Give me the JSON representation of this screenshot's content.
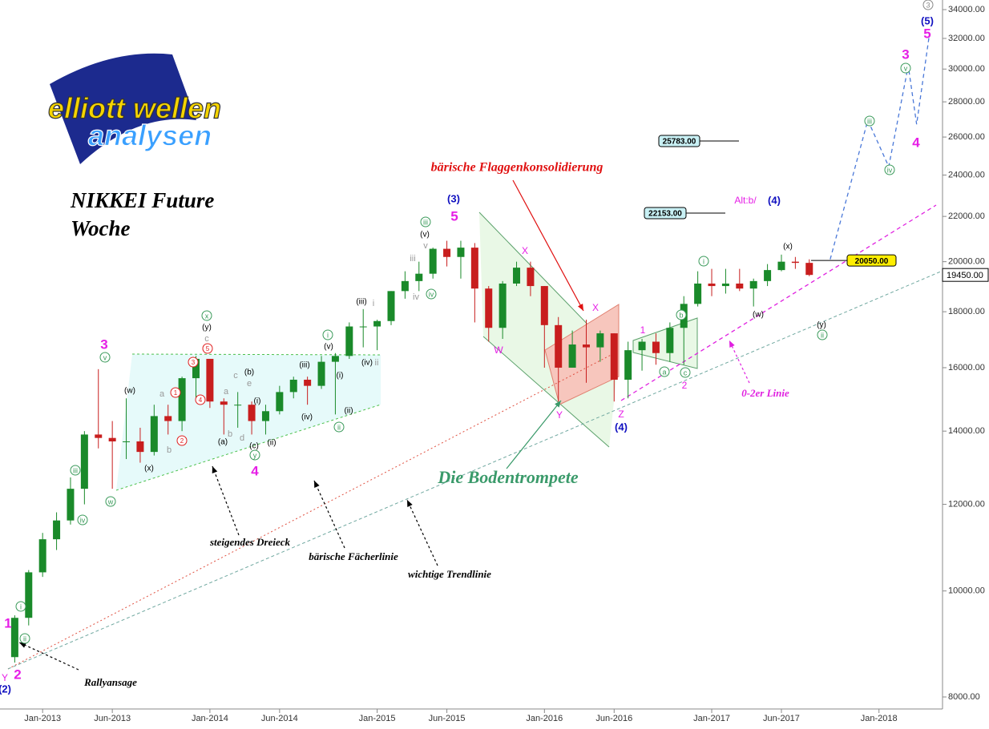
{
  "chart_data": {
    "type": "candlestick",
    "title": "NIKKEI Future",
    "subtitle": "Woche",
    "logo": {
      "line1": "elliott wellen",
      "line2": "analysen"
    },
    "log_scale": true,
    "xlim": [
      -3,
      64.5
    ],
    "ylim": [
      8000,
      34000
    ],
    "xticks": [
      {
        "value": 0,
        "label": "Jan-2013"
      },
      {
        "value": 5,
        "label": "Jun-2013"
      },
      {
        "value": 12,
        "label": "Jan-2014"
      },
      {
        "value": 17,
        "label": "Jun-2014"
      },
      {
        "value": 24,
        "label": "Jan-2015"
      },
      {
        "value": 29,
        "label": "Jun-2015"
      },
      {
        "value": 36,
        "label": "Jan-2016"
      },
      {
        "value": 41,
        "label": "Jun-2016"
      },
      {
        "value": 48,
        "label": "Jan-2017"
      },
      {
        "value": 53,
        "label": "Jun-2017"
      },
      {
        "value": 60,
        "label": "Jan-2018"
      }
    ],
    "yticks": [
      {
        "value": 8000,
        "label": "8000.00"
      },
      {
        "value": 10000,
        "label": "10000.00"
      },
      {
        "value": 12000,
        "label": "12000.00"
      },
      {
        "value": 14000,
        "label": "14000.00"
      },
      {
        "value": 16000,
        "label": "16000.00"
      },
      {
        "value": 18000,
        "label": "18000.00"
      },
      {
        "value": 20000,
        "label": "20000.00"
      },
      {
        "value": 22000,
        "label": "22000.00"
      },
      {
        "value": 24000,
        "label": "24000.00"
      },
      {
        "value": 26000,
        "label": "26000.00"
      },
      {
        "value": 28000,
        "label": "28000.00"
      },
      {
        "value": 30000,
        "label": "30000.00"
      },
      {
        "value": 32000,
        "label": "32000.00"
      },
      {
        "value": 34000,
        "label": "34000.00"
      }
    ],
    "up_color": "#1a8a2a",
    "down_color": "#c81e1e",
    "x": [
      -2,
      -1,
      0,
      1,
      2,
      3,
      4,
      5,
      6,
      7,
      8,
      9,
      10,
      11,
      12,
      13,
      14,
      15,
      16,
      17,
      18,
      19,
      20,
      21,
      22,
      23,
      24,
      25,
      26,
      27,
      28,
      29,
      30,
      31,
      32,
      33,
      34,
      35,
      36,
      37,
      38,
      39,
      40,
      41,
      42,
      43,
      44,
      45,
      46,
      47,
      48,
      49,
      50,
      51,
      52,
      53,
      54,
      55
    ],
    "open": [
      8700,
      9450,
      10400,
      11150,
      11600,
      12400,
      13900,
      13800,
      13700,
      13700,
      13400,
      14450,
      14300,
      15650,
      16300,
      14900,
      14800,
      14800,
      14300,
      14600,
      15200,
      15600,
      15400,
      16200,
      16400,
      17450,
      17450,
      17650,
      18800,
      19200,
      19500,
      20550,
      20200,
      20600,
      18900,
      17400,
      19100,
      19750,
      19000,
      17500,
      16000,
      16800,
      16700,
      17200,
      15600,
      16600,
      16900,
      16500,
      17400,
      18300,
      19100,
      19000,
      19100,
      18900,
      19200,
      19650,
      20000,
      19950
    ],
    "high": [
      9500,
      10450,
      11300,
      11800,
      12700,
      14000,
      15950,
      14300,
      15000,
      14100,
      14800,
      14800,
      15700,
      16400,
      16300,
      15000,
      15200,
      14900,
      14800,
      15400,
      15700,
      15700,
      16400,
      16500,
      17600,
      18100,
      17700,
      18800,
      19600,
      20000,
      20600,
      20900,
      20900,
      20800,
      19000,
      19200,
      20000,
      20000,
      19000,
      17800,
      17300,
      17700,
      17300,
      17200,
      16900,
      17000,
      17200,
      17600,
      18600,
      19600,
      19700,
      19700,
      19700,
      19300,
      19900,
      20300,
      20200,
      20100
    ],
    "low": [
      8600,
      9300,
      10300,
      10900,
      11500,
      12000,
      13500,
      12400,
      13200,
      13100,
      13300,
      13900,
      14000,
      15000,
      14700,
      13900,
      14100,
      13900,
      13900,
      14500,
      15000,
      14800,
      15300,
      14500,
      16300,
      16700,
      16600,
      17500,
      18500,
      18800,
      19300,
      19800,
      19300,
      17600,
      16900,
      17000,
      19000,
      18600,
      16000,
      14900,
      16000,
      15500,
      16200,
      14900,
      15000,
      15900,
      16100,
      16200,
      16100,
      18200,
      18600,
      18700,
      18800,
      18200,
      19000,
      19600,
      19700,
      19400
    ],
    "close": [
      9450,
      10400,
      11150,
      11600,
      12400,
      13900,
      13800,
      13700,
      13700,
      13400,
      14450,
      14300,
      15650,
      16300,
      14900,
      14800,
      14800,
      14300,
      14600,
      15200,
      15600,
      15400,
      16200,
      16400,
      17450,
      17450,
      17650,
      18800,
      19200,
      19500,
      20550,
      20200,
      20600,
      18900,
      17400,
      19100,
      19750,
      19000,
      17500,
      16000,
      16800,
      16700,
      17200,
      15600,
      16600,
      16900,
      16500,
      17400,
      18300,
      19100,
      19000,
      19100,
      18900,
      19200,
      19650,
      20000,
      19950,
      19450
    ],
    "last_price": {
      "value": 19450,
      "label": "19450.00"
    },
    "projection": {
      "color": "#4a78d8",
      "x": [
        56.5,
        59.2,
        60.7,
        62.1,
        62.7,
        63.6
      ],
      "values": [
        20100,
        26940,
        24430,
        30210,
        26710,
        32160
      ]
    },
    "levels": [
      {
        "value": 25783,
        "label": "25783.00",
        "color": "#c8f0f4"
      },
      {
        "value": 22153,
        "label": "22153.00",
        "color": "#c8f0f4"
      },
      {
        "value": 20050,
        "label": "20050.00",
        "color": "#ffee00"
      }
    ],
    "notes": [
      {
        "text": "bärische Flaggenkonsolidierung",
        "color": "#e01010"
      },
      {
        "text": "Die Bodentrompete",
        "color": "#3a9a6a"
      },
      {
        "text": "steigendes Dreieck",
        "color": "#000000"
      },
      {
        "text": "bärische Fächerlinie",
        "color": "#000000"
      },
      {
        "text": "wichtige Trendlinie",
        "color": "#000000"
      },
      {
        "text": "Rallyansage",
        "color": "#000000"
      },
      {
        "text": "0-2er Linie",
        "color": "#e020e0"
      }
    ],
    "wave_labels": [
      {
        "color": "#e61ee6",
        "circled": false,
        "texts": [
          "1",
          "2",
          "3",
          "4",
          "5",
          "3",
          "4",
          "5"
        ]
      },
      {
        "color": "#e61ee6",
        "circled": false,
        "texts": [
          "Y",
          "W",
          "X",
          "X",
          "Y",
          "Z",
          "1",
          "2",
          "Alt:b/"
        ]
      },
      {
        "color": "#1010c0",
        "circled": false,
        "texts": [
          "(2)",
          "(3)",
          "(4)",
          "(4)",
          "(5)"
        ]
      },
      {
        "color": "#000000",
        "circled": false,
        "texts": [
          "(w)",
          "(x)",
          "(y)",
          "(a)",
          "(b)",
          "(c)",
          "(i)",
          "(ii)",
          "(iii)",
          "(iv)",
          "(v)",
          "(i)",
          "(ii)",
          "(iii)",
          "(iv)",
          "(v)",
          "(w)",
          "(x)",
          "(y)"
        ]
      },
      {
        "color": "#999999",
        "circled": false,
        "texts": [
          "a",
          "b",
          "c",
          "d",
          "e",
          "a",
          "b",
          "c",
          "i",
          "ii",
          "iii",
          "iv",
          "v"
        ]
      },
      {
        "color": "#3a9a5a",
        "circled": true,
        "texts": [
          "i",
          "ii",
          "iii",
          "iv",
          "v",
          "w",
          "x",
          "y",
          "i",
          "ii",
          "iii",
          "iv",
          "a",
          "b",
          "c",
          "i",
          "ii",
          "iii",
          "iv",
          "v"
        ]
      },
      {
        "color": "#888888",
        "circled": true,
        "texts": [
          "3"
        ]
      },
      {
        "color": "#e02020",
        "circled": true,
        "texts": [
          "1",
          "2",
          "3",
          "4",
          "5"
        ]
      }
    ]
  }
}
